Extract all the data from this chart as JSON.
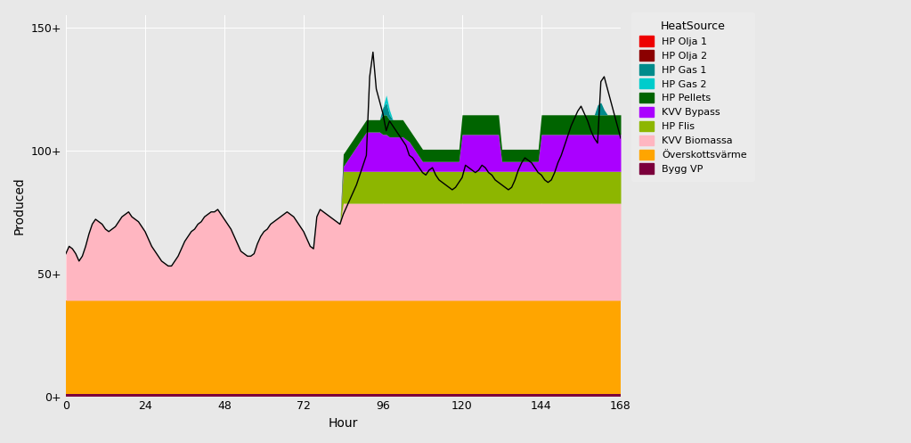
{
  "title": "",
  "xlabel": "Hour",
  "ylabel": "Produced",
  "xlim": [
    0,
    168
  ],
  "ylim": [
    0,
    155
  ],
  "yticks": [
    0,
    50,
    100,
    150
  ],
  "xticks": [
    0,
    24,
    48,
    72,
    96,
    120,
    144,
    168
  ],
  "bg_color": "#E8E8E8",
  "grid_color": "#FFFFFF",
  "legend_title": "HeatSource",
  "sources": [
    {
      "name": "HP Olja 1",
      "color": "#EE0000"
    },
    {
      "name": "HP Olja 2",
      "color": "#8B0000"
    },
    {
      "name": "HP Gas 1",
      "color": "#008B8B"
    },
    {
      "name": "HP Gas 2",
      "color": "#00CCCC"
    },
    {
      "name": "HP Pellets",
      "color": "#006400"
    },
    {
      "name": "KVV Bypass",
      "color": "#AA00FF"
    },
    {
      "name": "HP Flis",
      "color": "#8DB600"
    },
    {
      "name": "KVV Biomassa",
      "color": "#FFB6C1"
    },
    {
      "name": "Överskottsvärme",
      "color": "#FFA500"
    },
    {
      "name": "Bygg VP",
      "color": "#7B003C"
    }
  ],
  "hours": 169,
  "bygg_vp_val": 1.0,
  "overskott_val": 38.0,
  "hp_flis_base": 78.5,
  "hp_flis_thickness": 13.0,
  "hp_flis_start": 84
}
